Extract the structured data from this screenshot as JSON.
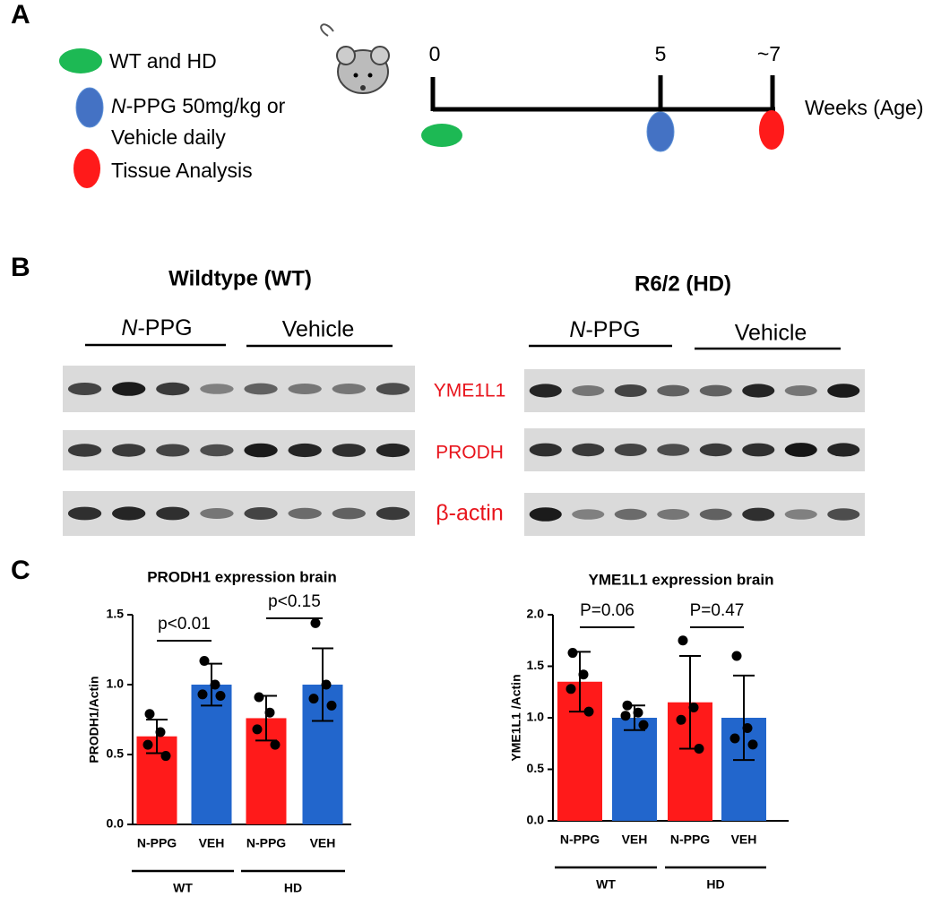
{
  "panel_a": {
    "letter": "A",
    "legend": [
      "WT and HD",
      {
        "italic": "N",
        "text": "-PPG 50mg/kg or"
      },
      "Vehicle daily",
      "Tissue Analysis"
    ],
    "timeline": {
      "ticks": [
        "0",
        "5",
        "~7"
      ],
      "axis_label": "Weeks (Age)"
    }
  },
  "panel_b": {
    "letter": "B",
    "blots": [
      {
        "title": "Wildtype (WT)",
        "groups": [
          {
            "italic": "N",
            "text": "-PPG"
          },
          "Vehicle"
        ]
      },
      {
        "title": "R6/2 (HD)",
        "groups": [
          {
            "italic": "N",
            "text": "-PPG"
          },
          "Vehicle"
        ]
      }
    ],
    "proteins": [
      "YME1L1",
      "PRODH",
      "β-actin"
    ]
  },
  "panel_c": {
    "letter": "C"
  },
  "chart_data": [
    {
      "type": "bar",
      "title": "PRODH1 expression brain",
      "ylabel": "PRODH1/Actin",
      "categories": [
        "N-PPG",
        "VEH",
        "N-PPG",
        "VEH"
      ],
      "groups": [
        "WT",
        "HD"
      ],
      "values": [
        0.63,
        1.0,
        0.76,
        1.0
      ],
      "errors": [
        0.12,
        0.15,
        0.16,
        0.26
      ],
      "colors": [
        "#ff1a1a",
        "#2266cc",
        "#ff1a1a",
        "#2266cc"
      ],
      "points": [
        [
          0.79,
          0.66,
          0.57,
          0.49
        ],
        [
          1.17,
          1.0,
          0.93,
          0.92
        ],
        [
          0.91,
          0.8,
          0.68,
          0.57
        ],
        [
          1.44,
          1.0,
          0.9,
          0.85
        ]
      ],
      "annotations": [
        "p<0.01",
        "p<0.15"
      ],
      "ylim": [
        0,
        1.5
      ],
      "yticks": [
        {
          "value": 0,
          "label": "0.0"
        },
        0.5,
        {
          "value": 1,
          "label": "1.0"
        },
        1.5
      ]
    },
    {
      "type": "bar",
      "title": "YME1L1 expression brain",
      "ylabel": "YME1L1 /Actin",
      "categories": [
        "N-PPG",
        "VEH",
        "N-PPG",
        "VEH"
      ],
      "groups": [
        "WT",
        "HD"
      ],
      "values": [
        1.35,
        1.0,
        1.15,
        1.0
      ],
      "errors": [
        0.29,
        0.12,
        0.45,
        0.41
      ],
      "colors": [
        "#ff1a1a",
        "#2266cc",
        "#ff1a1a",
        "#2266cc"
      ],
      "points": [
        [
          1.63,
          1.42,
          1.28,
          1.06
        ],
        [
          1.12,
          1.05,
          1.02,
          0.93
        ],
        [
          1.75,
          1.1,
          0.98,
          0.7
        ],
        [
          1.6,
          0.9,
          0.8,
          0.74
        ]
      ],
      "annotations": [
        "P=0.06",
        "P=0.47"
      ],
      "ylim": [
        0,
        2
      ],
      "yticks": [
        {
          "value": 0,
          "label": "0.0"
        },
        0.5,
        {
          "value": 1,
          "label": "1.0"
        },
        1.5,
        {
          "value": 2,
          "label": "2.0"
        }
      ]
    }
  ]
}
